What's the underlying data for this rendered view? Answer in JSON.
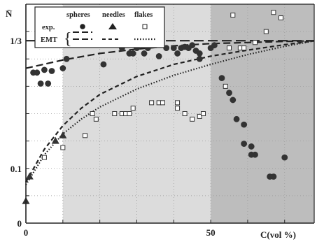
{
  "chart_data": {
    "type": "scatter",
    "xlabel": "C(vol %)",
    "ylabel": "N̄",
    "xlim": [
      0,
      78
    ],
    "ylim": [
      0,
      0.4
    ],
    "x_ticks": [
      0,
      50
    ],
    "x_tick_labels": [
      "0",
      "50"
    ],
    "y_ticks": [
      0,
      0.1,
      0.3333
    ],
    "y_tick_labels": [
      "0",
      "0.1",
      "1/3"
    ],
    "shaded_regions": [
      {
        "x_from": 10,
        "x_to": 50,
        "shade": "light",
        "color": "#dcdcdc"
      },
      {
        "x_from": 50,
        "x_to": 78,
        "shade": "dark",
        "color": "#bdbdbd"
      }
    ],
    "reference_line": {
      "y": 0.3333,
      "style": "long-dash"
    },
    "legend": {
      "position": "top-left",
      "columns": [
        "spheres",
        "needles",
        "flakes"
      ],
      "rows": [
        {
          "label": "exp.",
          "markers": [
            "filled-circle",
            "filled-triangle",
            "open-square"
          ]
        },
        {
          "label": "EMT",
          "line_styles": [
            "long-dash",
            "dash",
            "dot"
          ]
        }
      ]
    },
    "series": [
      {
        "name": "spheres",
        "marker": "filled-circle",
        "x": [
          2,
          3,
          4,
          5,
          6,
          7,
          10,
          11,
          21,
          26,
          28,
          29,
          30,
          32,
          33,
          36,
          36,
          38,
          40,
          41,
          42,
          43,
          44,
          45,
          46,
          47,
          47,
          50,
          51,
          53,
          55,
          56,
          57,
          59,
          59,
          61,
          61,
          62,
          66,
          67,
          70
        ],
        "y": [
          0.275,
          0.275,
          0.255,
          0.28,
          0.255,
          0.278,
          0.283,
          0.3,
          0.29,
          0.32,
          0.31,
          0.31,
          0.32,
          0.31,
          0.32,
          0.305,
          0.335,
          0.32,
          0.32,
          0.31,
          0.32,
          0.322,
          0.32,
          0.325,
          0.315,
          0.31,
          0.3,
          0.32,
          0.325,
          0.265,
          0.238,
          0.225,
          0.19,
          0.18,
          0.145,
          0.14,
          0.125,
          0.125,
          0.085,
          0.085,
          0.12
        ]
      },
      {
        "name": "needles",
        "marker": "filled-triangle",
        "x": [
          0,
          1,
          8,
          10
        ],
        "y": [
          0.04,
          0.085,
          0.15,
          0.16
        ]
      },
      {
        "name": "flakes",
        "marker": "open-square",
        "x": [
          5,
          10,
          16,
          18,
          19,
          24,
          26,
          27,
          28,
          29,
          34,
          36,
          37,
          41,
          41,
          43,
          45,
          47,
          48,
          54,
          55,
          56,
          58,
          59,
          62,
          65,
          67,
          69,
          71
        ],
        "y": [
          0.12,
          0.138,
          0.16,
          0.2,
          0.19,
          0.2,
          0.2,
          0.2,
          0.2,
          0.21,
          0.22,
          0.22,
          0.22,
          0.21,
          0.22,
          0.2,
          0.19,
          0.195,
          0.2,
          0.25,
          0.32,
          0.38,
          0.32,
          0.32,
          0.33,
          0.35,
          0.385,
          0.375,
          0.42
        ]
      }
    ],
    "emt_curves": [
      {
        "name": "spheres",
        "style": "long-dash",
        "x": [
          0,
          10,
          20,
          30,
          40,
          50,
          60,
          70,
          78
        ],
        "y": [
          0.283,
          0.298,
          0.31,
          0.318,
          0.324,
          0.328,
          0.33,
          0.332,
          0.333
        ]
      },
      {
        "name": "needles",
        "style": "dash",
        "x": [
          0,
          5,
          10,
          15,
          20,
          30,
          40,
          50,
          60,
          70,
          78
        ],
        "y": [
          0.075,
          0.135,
          0.178,
          0.21,
          0.235,
          0.268,
          0.29,
          0.305,
          0.316,
          0.326,
          0.333
        ]
      },
      {
        "name": "flakes",
        "style": "dot",
        "x": [
          0,
          5,
          10,
          15,
          20,
          30,
          40,
          50,
          60,
          70,
          78
        ],
        "y": [
          0.07,
          0.125,
          0.163,
          0.19,
          0.212,
          0.245,
          0.27,
          0.29,
          0.308,
          0.323,
          0.333
        ]
      }
    ]
  },
  "colors": {
    "ink": "#222222",
    "light_shade": "#dcdcdc",
    "dark_shade": "#bdbdbd",
    "background": "#ffffff"
  }
}
